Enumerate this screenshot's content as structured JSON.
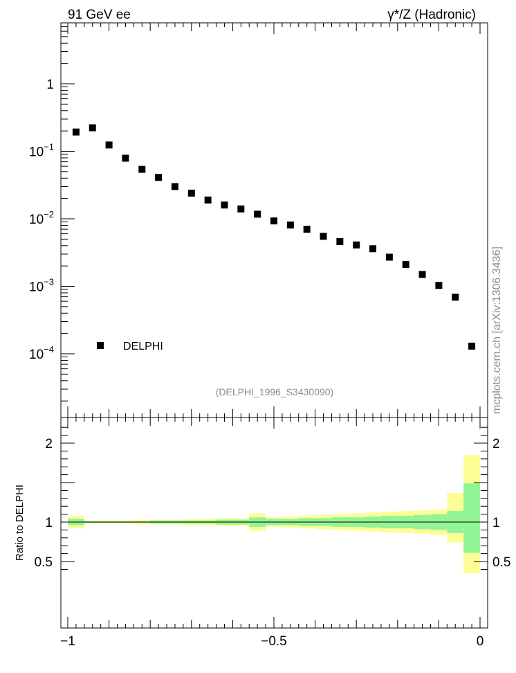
{
  "header": {
    "left_title": "91 GeV ee",
    "right_title": "γ*/Z (Hadronic)"
  },
  "watermark": "mcplots.cern.ch [arXiv:1306.3436]",
  "analysis_label": "(DELPHI_1996_S3430090)",
  "legend": {
    "entry": "DELPHI",
    "placement": "lower-left"
  },
  "colors": {
    "marker": "#000000",
    "band_inner": "#92f595",
    "band_outer": "#fdfd97"
  },
  "chart_data": [
    {
      "type": "scatter",
      "panel": "main",
      "yscale": "log",
      "xlim": [
        -1.0,
        0.0
      ],
      "ylim": [
        1e-05,
        10
      ],
      "ytick_labels": [
        {
          "value": 1,
          "base": "1",
          "exp": ""
        },
        {
          "value": 0.1,
          "base": "10",
          "exp": "−1"
        },
        {
          "value": 0.01,
          "base": "10",
          "exp": "−2"
        },
        {
          "value": 0.001,
          "base": "10",
          "exp": "−3"
        },
        {
          "value": 0.0001,
          "base": "10",
          "exp": "−4"
        }
      ],
      "series": [
        {
          "name": "DELPHI",
          "x": [
            -0.98,
            -0.94,
            -0.9,
            -0.86,
            -0.82,
            -0.78,
            -0.74,
            -0.7,
            -0.66,
            -0.62,
            -0.58,
            -0.54,
            -0.5,
            -0.46,
            -0.42,
            -0.38,
            -0.34,
            -0.3,
            -0.26,
            -0.22,
            -0.18,
            -0.14,
            -0.1,
            -0.06,
            -0.02
          ],
          "y": [
            0.193,
            0.223,
            0.124,
            0.079,
            0.054,
            0.041,
            0.03,
            0.024,
            0.019,
            0.016,
            0.014,
            0.0117,
            0.0093,
            0.0081,
            0.007,
            0.0055,
            0.0046,
            0.0041,
            0.0036,
            0.0027,
            0.0021,
            0.0015,
            0.00103,
            0.00069,
            0.00013
          ]
        }
      ]
    },
    {
      "type": "area",
      "panel": "ratio",
      "ylabel": "Ratio to DELPHI",
      "xlim": [
        -1.0,
        0.0
      ],
      "ylim": [
        0.35,
        2.3
      ],
      "yticks": [
        0.5,
        1,
        2
      ],
      "ytick_labels": [
        "0.5",
        "1",
        "2"
      ],
      "xticks": [
        -1,
        -0.5,
        0
      ],
      "xtick_labels": [
        "−1",
        "−0.5",
        "0"
      ],
      "bin_edges": [
        -1.0,
        -0.96,
        -0.92,
        -0.88,
        -0.84,
        -0.8,
        -0.76,
        -0.72,
        -0.68,
        -0.64,
        -0.6,
        -0.56,
        -0.52,
        -0.48,
        -0.44,
        -0.4,
        -0.36,
        -0.32,
        -0.28,
        -0.24,
        -0.2,
        -0.16,
        -0.12,
        -0.08,
        -0.04,
        0.0
      ],
      "series": [
        {
          "name": "",
          "role": "outer_low",
          "values": [
            0.92,
            0.98,
            0.98,
            0.98,
            0.97,
            0.97,
            0.97,
            0.96,
            0.96,
            0.95,
            0.95,
            0.89,
            0.94,
            0.93,
            0.92,
            0.91,
            0.9,
            0.89,
            0.88,
            0.87,
            0.86,
            0.85,
            0.84,
            0.74,
            0.35
          ]
        },
        {
          "name": "",
          "role": "inner_low",
          "values": [
            0.96,
            0.99,
            0.99,
            0.99,
            0.99,
            0.98,
            0.98,
            0.98,
            0.98,
            0.97,
            0.97,
            0.94,
            0.96,
            0.96,
            0.95,
            0.95,
            0.94,
            0.94,
            0.93,
            0.92,
            0.92,
            0.91,
            0.9,
            0.86,
            0.61
          ]
        },
        {
          "name": "",
          "role": "inner_high",
          "values": [
            1.04,
            1.01,
            1.01,
            1.01,
            1.01,
            1.02,
            1.02,
            1.02,
            1.02,
            1.03,
            1.03,
            1.06,
            1.04,
            1.04,
            1.05,
            1.05,
            1.06,
            1.06,
            1.07,
            1.08,
            1.08,
            1.09,
            1.1,
            1.14,
            1.49
          ]
        },
        {
          "name": "",
          "role": "outer_high",
          "values": [
            1.08,
            1.02,
            1.02,
            1.02,
            1.03,
            1.03,
            1.03,
            1.04,
            1.04,
            1.05,
            1.05,
            1.11,
            1.06,
            1.07,
            1.08,
            1.09,
            1.1,
            1.11,
            1.12,
            1.13,
            1.14,
            1.15,
            1.16,
            1.37,
            1.85
          ]
        }
      ]
    }
  ]
}
